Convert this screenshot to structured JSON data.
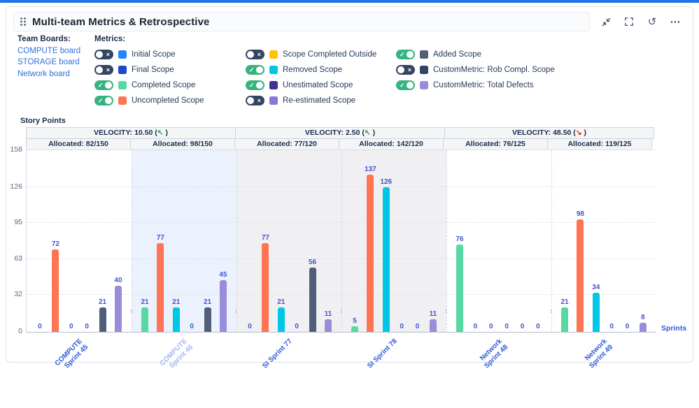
{
  "widget": {
    "title": "Multi-team Metrics & Retrospective",
    "toolbar_icons": [
      "collapse-icon",
      "fullscreen-icon",
      "refresh-icon",
      "more-icon"
    ],
    "refresh_glyph": "↺",
    "more_glyph": "⋯"
  },
  "team_boards": {
    "label": "Team Boards:",
    "items": [
      "COMPUTE board",
      "STORAGE board",
      "Network board"
    ]
  },
  "metrics": {
    "label": "Metrics:",
    "columns": [
      [
        {
          "label": "Initial Scope",
          "color": "#2684FF",
          "enabled": false
        },
        {
          "label": "Final Scope",
          "color": "#1D49C8",
          "enabled": false
        },
        {
          "label": "Completed Scope",
          "color": "#57D9A3",
          "enabled": true
        },
        {
          "label": "Uncompleted Scope",
          "color": "#FF7452",
          "enabled": true
        }
      ],
      [
        {
          "label": "Scope Completed Outside",
          "color": "#FFC400",
          "enabled": false
        },
        {
          "label": "Removed Scope",
          "color": "#00C7E6",
          "enabled": true
        },
        {
          "label": "Unestimated Scope",
          "color": "#403294",
          "enabled": true
        },
        {
          "label": "Re-estimated Scope",
          "color": "#8777D9",
          "enabled": false
        }
      ],
      [
        {
          "label": "Added Scope",
          "color": "#505F79",
          "enabled": true
        },
        {
          "label": "CustomMetric: Rob Compl. Scope",
          "color": "#344563",
          "enabled": false
        },
        {
          "label": "CustomMetric: Total Defects",
          "color": "#998DD9",
          "enabled": true
        }
      ]
    ]
  },
  "chart_data": {
    "type": "bar",
    "ylabel": "Story Points",
    "xlabel": "Sprints",
    "ymax": 158,
    "yticks": [
      0,
      32,
      63,
      95,
      126,
      158
    ],
    "grid": "dashed",
    "series": [
      {
        "name": "Completed Scope",
        "color": "#57D9A3"
      },
      {
        "name": "Uncompleted Scope",
        "color": "#FF7452"
      },
      {
        "name": "Removed Scope",
        "color": "#00C7E6"
      },
      {
        "name": "Unestimated Scope",
        "color": "#403294"
      },
      {
        "name": "Added Scope",
        "color": "#505F79"
      },
      {
        "name": "CustomMetric: Total Defects",
        "color": "#998DD9"
      }
    ],
    "velocity_headers": [
      {
        "label": "VELOCITY: 10.50",
        "trend": "up",
        "arrow": "↖",
        "span": 2
      },
      {
        "label": "VELOCITY: 2.50",
        "trend": "up",
        "arrow": "↖",
        "span": 2
      },
      {
        "label": "VELOCITY: 48.50",
        "trend": "down",
        "arrow": "↘",
        "span": 2
      }
    ],
    "allocated_headers": [
      "Allocated: 82/150",
      "Allocated: 98/150",
      "Allocated: 77/120",
      "Allocated: 142/120",
      "Allocated: 76/125",
      "Allocated: 119/125"
    ],
    "groups": [
      {
        "sprint": "COMPUTE\nSprint 45",
        "bg": "none",
        "label_muted": false,
        "values": [
          0,
          72,
          0,
          0,
          21,
          40
        ]
      },
      {
        "sprint": "COMPUTE\nSprint 46",
        "bg": "blue",
        "label_muted": true,
        "values": [
          21,
          77,
          21,
          0,
          21,
          45
        ]
      },
      {
        "sprint": "SI Sprint 77",
        "bg": "gray",
        "label_muted": false,
        "values": [
          0,
          77,
          21,
          0,
          56,
          11
        ]
      },
      {
        "sprint": "SI Sprint 78",
        "bg": "gray",
        "label_muted": false,
        "values": [
          5,
          137,
          126,
          0,
          0,
          11
        ]
      },
      {
        "sprint": "Network\nSprint 48",
        "bg": "none",
        "label_muted": false,
        "values": [
          76,
          0,
          0,
          0,
          0,
          0
        ]
      },
      {
        "sprint": "Network\nSprint 49",
        "bg": "none",
        "label_muted": false,
        "values": [
          21,
          98,
          34,
          0,
          0,
          8
        ]
      }
    ]
  }
}
